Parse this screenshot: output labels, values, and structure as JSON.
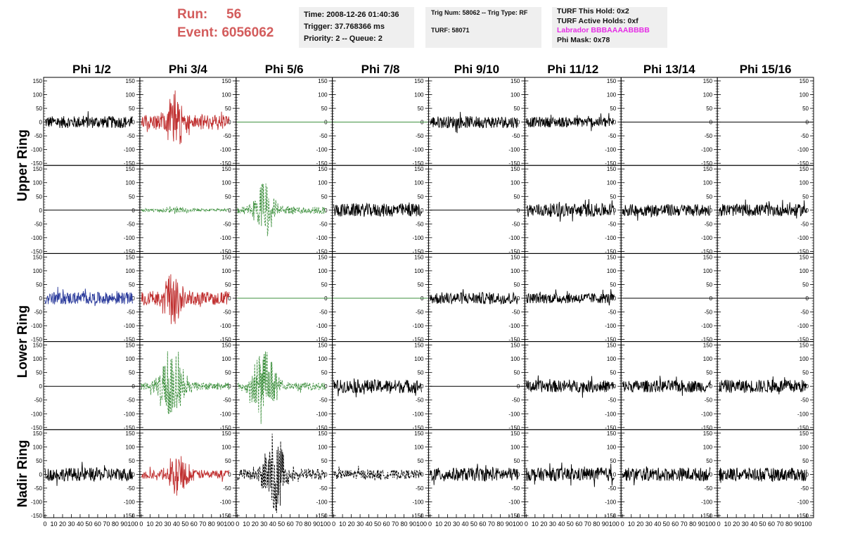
{
  "header": {
    "run_label": "Run:",
    "run_value": "56",
    "event_label": "Event:",
    "event_value": "6056062",
    "time_line": "Time: 2008-12-26 01:40:36",
    "trigger_line": "Trigger: 37.768366 ms",
    "priority_line": "Priority: 2 -- Queue: 2",
    "trig_line": "Trig Num: 58062 -- Trig Type: RF",
    "turf_line": "TURF: 58071",
    "turf_hold": "TURF This Hold: 0x2",
    "turf_active": "TURF Active Holds: 0xf",
    "labrador": "Labrador BBBAAAABBBB",
    "phi_mask": "Phi Mask: 0x78"
  },
  "colors": {
    "red": "#c03030",
    "green": "#3c8f3c",
    "blue": "#2c3c9c",
    "black": "#000000"
  },
  "chart_data": {
    "type": "line",
    "columns": [
      "Phi 1/2",
      "Phi 3/4",
      "Phi 5/6",
      "Phi 7/8",
      "Phi 9/10",
      "Phi 11/12",
      "Phi 13/14",
      "Phi 15/16"
    ],
    "ring_labels": [
      {
        "name": "Upper Ring",
        "rows": [
          0,
          1
        ]
      },
      {
        "name": "Lower Ring",
        "rows": [
          2,
          3
        ]
      },
      {
        "name": "Nadir Ring",
        "rows": [
          4
        ]
      }
    ],
    "ylim": [
      -150,
      150
    ],
    "xlim": [
      0,
      100
    ],
    "y_ticks": [
      -150,
      -100,
      -50,
      0,
      50,
      100,
      150
    ],
    "x_tick_labels": [
      "0",
      "10",
      "20",
      "30",
      "40",
      "50",
      "60",
      "70",
      "80",
      "90",
      "100"
    ],
    "rows": [
      [
        {
          "color": "black",
          "amp": 20
        },
        {
          "color": "red",
          "amp": 25,
          "burst": {
            "center": 38,
            "width": 10,
            "peak": 90
          }
        },
        {
          "color": "green",
          "flat": true
        },
        {
          "color": "green",
          "flat": true
        },
        {
          "color": "black",
          "amp": 20
        },
        {
          "color": "black",
          "amp": 17
        },
        {
          "color": "black",
          "flat": true
        },
        {
          "color": "black",
          "flat": true
        }
      ],
      [
        {
          "color": "black",
          "flat": true
        },
        {
          "color": "green",
          "dashed": true,
          "amp": 5,
          "burst": {
            "center": 40,
            "width": 14,
            "peak": 10
          }
        },
        {
          "color": "green",
          "dashed": true,
          "amp": 12,
          "burst": {
            "center": 30,
            "width": 12,
            "peak": 90
          }
        },
        {
          "color": "black",
          "amp": 22
        },
        {
          "color": "black",
          "flat": true
        },
        {
          "color": "black",
          "amp": 22
        },
        {
          "color": "black",
          "amp": 20
        },
        {
          "color": "black",
          "amp": 20
        }
      ],
      [
        {
          "color": "blue",
          "amp": 20
        },
        {
          "color": "red",
          "amp": 22,
          "burst": {
            "center": 35,
            "width": 12,
            "peak": 80
          }
        },
        {
          "color": "green",
          "flat": true
        },
        {
          "color": "green",
          "flat": true
        },
        {
          "color": "black",
          "amp": 20
        },
        {
          "color": "black",
          "amp": 17
        },
        {
          "color": "black",
          "flat": true
        },
        {
          "color": "black",
          "flat": true
        }
      ],
      [
        {
          "color": "black",
          "flat": true
        },
        {
          "color": "green",
          "dashed": true,
          "amp": 12,
          "burst": {
            "center": 36,
            "width": 15,
            "peak": 125
          }
        },
        {
          "color": "green",
          "dashed": true,
          "amp": 12,
          "burst": {
            "center": 30,
            "width": 14,
            "peak": 120
          }
        },
        {
          "color": "black",
          "amp": 22
        },
        {
          "color": "black",
          "flat": true
        },
        {
          "color": "black",
          "amp": 20
        },
        {
          "color": "black",
          "amp": 20
        },
        {
          "color": "black",
          "amp": 22
        }
      ],
      [
        {
          "color": "black",
          "amp": 22
        },
        {
          "color": "red",
          "amp": 15,
          "burst": {
            "center": 42,
            "width": 12,
            "peak": 65
          }
        },
        {
          "color": "black",
          "dashed": true,
          "amp": 18,
          "burst": {
            "center": 42,
            "width": 12,
            "peak": 140
          }
        },
        {
          "color": "black",
          "dashed": true,
          "amp": 15
        },
        {
          "color": "black",
          "amp": 22
        },
        {
          "color": "black",
          "amp": 22
        },
        {
          "color": "black",
          "amp": 22
        },
        {
          "color": "black",
          "amp": 22
        }
      ]
    ]
  }
}
